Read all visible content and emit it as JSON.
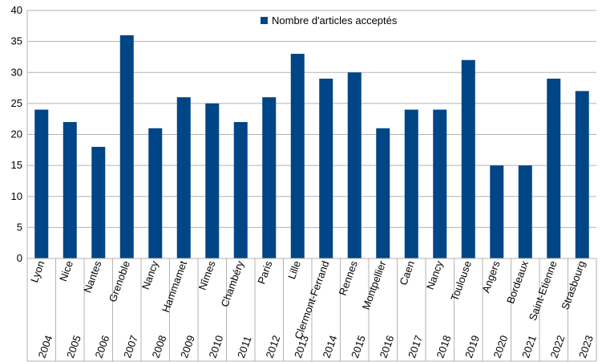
{
  "colors": {
    "bar": "#004586",
    "grid": "#b3b3b3",
    "axis": "#b3b3b3"
  },
  "chart_data": {
    "type": "bar",
    "categories": [
      "Lyon",
      "Nice",
      "Nantes",
      "Grenoble",
      "Nancy",
      "Hammamet",
      "Nîmes",
      "Chambéry",
      "Paris",
      "Lille",
      "Clermont-Ferrand",
      "Rennes",
      "Montpellier",
      "Caen",
      "Nancy",
      "Toulouse",
      "Angers",
      "Bordeaux",
      "Saint-Etienne",
      "Strasbourg"
    ],
    "years": [
      "2004",
      "2005",
      "2006",
      "2007",
      "2008",
      "2009",
      "2010",
      "2011",
      "2012",
      "2013",
      "2014",
      "2015",
      "2016",
      "2017",
      "2018",
      "2019",
      "2020",
      "2021",
      "2022",
      "2023"
    ],
    "series": [
      {
        "name": "Nombre d'articles acceptés",
        "values": [
          24,
          22,
          18,
          36,
          21,
          26,
          25,
          22,
          26,
          33,
          29,
          30,
          21,
          24,
          24,
          32,
          15,
          15,
          29,
          27
        ]
      }
    ],
    "ylim": [
      0,
      40
    ],
    "yticks": [
      0,
      5,
      10,
      15,
      20,
      25,
      30,
      35,
      40
    ],
    "grid": true,
    "legend": "top-center"
  }
}
